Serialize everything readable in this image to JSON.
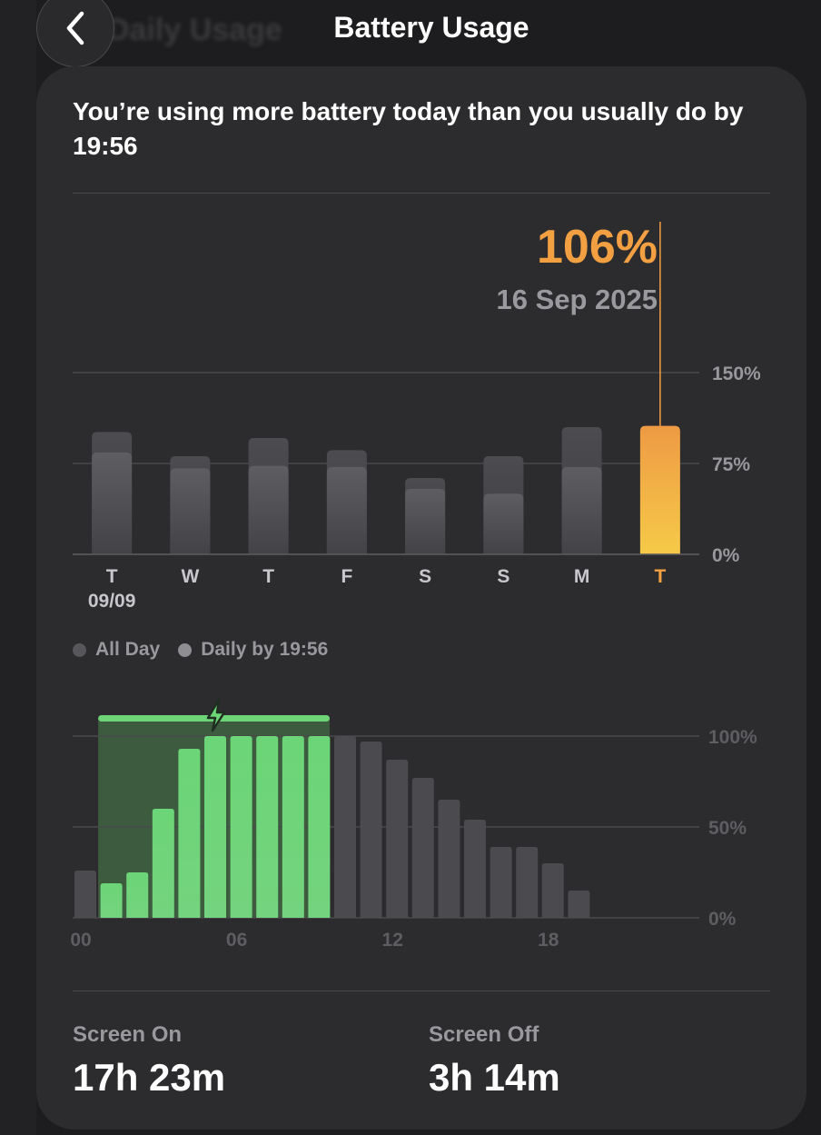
{
  "nav": {
    "title": "Battery Usage",
    "back_title": "Daily Usage"
  },
  "summary": {
    "headline": "You’re using more battery today than you usually do by 19:56"
  },
  "highlight": {
    "value": "106%",
    "date": "16 Sep 2025"
  },
  "legend": [
    {
      "label": "All Day",
      "color": "#57575b"
    },
    {
      "label": "Daily by 19:56",
      "color": "#8e8e93"
    }
  ],
  "stats": {
    "screen_on_label": "Screen On",
    "screen_on_value": "17h 23m",
    "screen_off_label": "Screen Off",
    "screen_off_value": "3h 14m"
  },
  "colors": {
    "accent": "#f2a042",
    "charging": "#6dd477",
    "bar_gray": "#4b4b4f"
  },
  "chart_data": [
    {
      "type": "bar",
      "categories": [
        "T",
        "W",
        "T",
        "F",
        "S",
        "S",
        "M",
        "T"
      ],
      "sublabels": [
        "09/09",
        "",
        "",
        "",
        "",
        "",
        "",
        ""
      ],
      "series": [
        {
          "name": "All Day",
          "values": [
            101,
            81,
            96,
            86,
            63,
            81,
            105,
            106
          ]
        },
        {
          "name": "Daily by 19:56",
          "values": [
            84,
            71,
            73,
            72,
            54,
            50,
            72,
            106
          ]
        }
      ],
      "highlight_index": 7,
      "y_ticks": [
        "0%",
        "75%",
        "150%"
      ],
      "ylim": [
        0,
        150
      ]
    },
    {
      "type": "bar",
      "x_ticks": [
        "00",
        "06",
        "12",
        "18"
      ],
      "hours": [
        0,
        1,
        2,
        3,
        4,
        5,
        6,
        7,
        8,
        9,
        10,
        11,
        12,
        13,
        14,
        15,
        16,
        17,
        18,
        19
      ],
      "values": [
        26,
        19,
        25,
        60,
        93,
        100,
        100,
        100,
        100,
        100,
        100,
        97,
        87,
        77,
        65,
        54,
        39,
        39,
        30,
        15
      ],
      "charging": [
        false,
        true,
        true,
        true,
        true,
        true,
        true,
        true,
        true,
        true,
        false,
        false,
        false,
        false,
        false,
        false,
        false,
        false,
        false,
        false
      ],
      "charging_hours": [
        1,
        10
      ],
      "y_ticks": [
        "0%",
        "50%",
        "100%"
      ],
      "ylim": [
        0,
        100
      ]
    }
  ]
}
